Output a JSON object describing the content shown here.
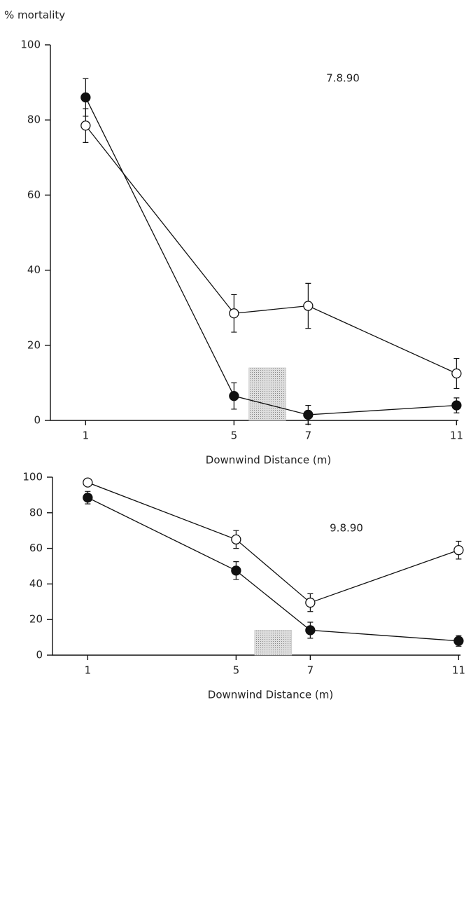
{
  "chart_data": [
    {
      "type": "line",
      "ylabel": "% mortality",
      "xlabel": "Downwind Distance (m)",
      "annotation": "7.8.90",
      "x": [
        1,
        5,
        7,
        11
      ],
      "xlim": [
        0.05,
        11.05
      ],
      "xticks": [
        1,
        5,
        7,
        11
      ],
      "ylim": [
        0,
        100
      ],
      "yticks": [
        0,
        20,
        40,
        60,
        80,
        100
      ],
      "shade": {
        "x": [
          5.4,
          6.4
        ],
        "y": 14,
        "color": "#bbb"
      },
      "series": [
        {
          "color": "#111",
          "marker": "filled",
          "values": [
            86,
            6.5,
            1.5,
            4
          ],
          "errors": [
            5,
            3.5,
            2.5,
            2
          ]
        },
        {
          "color": "#fff",
          "marker": "open",
          "values": [
            78.5,
            28.5,
            30.5,
            12.5
          ],
          "errors": [
            4.5,
            5,
            6,
            4
          ]
        }
      ]
    },
    {
      "type": "line",
      "xlabel": "Downwind Distance (m)",
      "annotation": "9.8.90",
      "x": [
        1,
        5,
        7,
        11
      ],
      "xlim": [
        0.05,
        11.05
      ],
      "xticks": [
        1,
        5,
        7,
        11
      ],
      "ylim": [
        0,
        100
      ],
      "yticks": [
        0,
        20,
        40,
        60,
        80,
        100
      ],
      "shade": {
        "x": [
          5.5,
          6.5
        ],
        "y": 14,
        "color": "#bbb"
      },
      "series": [
        {
          "color": "#fff",
          "marker": "open",
          "values": [
            97,
            65,
            29.5,
            59
          ],
          "errors": [
            2,
            5,
            5,
            5
          ]
        },
        {
          "color": "#111",
          "marker": "filled",
          "values": [
            88.5,
            47.5,
            14,
            8
          ],
          "errors": [
            3.5,
            5,
            4.5,
            3
          ]
        }
      ]
    }
  ]
}
